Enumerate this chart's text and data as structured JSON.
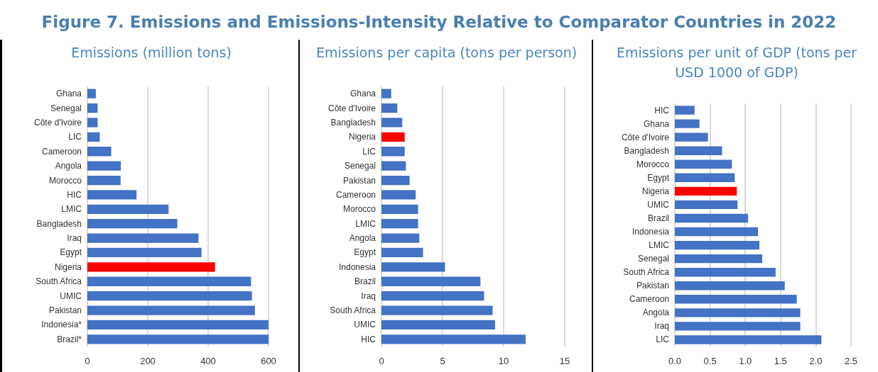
{
  "chart_data": [
    {
      "type": "bar",
      "orientation": "horizontal",
      "title": "Figure 7. Emissions and Emissions-Intensity Relative to Comparator Countries in 2022",
      "subtitle": "Emissions (million tons)",
      "categories": [
        "Ghana",
        "Senegal",
        "Côte d'Ivoire",
        "LIC",
        "Cameroon",
        "Angola",
        "Morocco",
        "HIC",
        "LMIC",
        "Bangladesh",
        "Iraq",
        "Egypt",
        "Nigeria",
        "South Africa",
        "UMIC",
        "Pakistan",
        "Indonesia*",
        "Brazil*"
      ],
      "values": [
        28,
        34,
        34,
        41,
        79,
        111,
        110,
        163,
        269,
        298,
        368,
        378,
        423,
        542,
        545,
        555,
        600,
        600
      ],
      "colors": [
        "#4472c4",
        "#4472c4",
        "#4472c4",
        "#4472c4",
        "#4472c4",
        "#4472c4",
        "#4472c4",
        "#4472c4",
        "#4472c4",
        "#4472c4",
        "#4472c4",
        "#4472c4",
        "#ff0000",
        "#4472c4",
        "#4472c4",
        "#4472c4",
        "#4472c4",
        "#4472c4"
      ],
      "xlim": [
        0,
        600
      ],
      "xticks": [
        0,
        200,
        400,
        600
      ],
      "grid": "x"
    },
    {
      "type": "bar",
      "orientation": "horizontal",
      "subtitle": "Emissions per capita (tons per person)",
      "categories": [
        "Ghana",
        "Côte d'Ivoire",
        "Bangladesh",
        "Nigeria",
        "LIC",
        "Senegal",
        "Pakistan",
        "Cameroon",
        "Morocco",
        "LMIC",
        "Angola",
        "Egypt",
        "Indonesia",
        "Brazil",
        "Iraq",
        "South Africa",
        "UMIC",
        "HIC"
      ],
      "values": [
        0.8,
        1.3,
        1.7,
        1.9,
        1.9,
        2.0,
        2.3,
        2.8,
        3.0,
        3.0,
        3.1,
        3.4,
        5.2,
        8.1,
        8.4,
        9.1,
        9.3,
        11.8
      ],
      "colors": [
        "#4472c4",
        "#4472c4",
        "#4472c4",
        "#ff0000",
        "#4472c4",
        "#4472c4",
        "#4472c4",
        "#4472c4",
        "#4472c4",
        "#4472c4",
        "#4472c4",
        "#4472c4",
        "#4472c4",
        "#4472c4",
        "#4472c4",
        "#4472c4",
        "#4472c4",
        "#4472c4"
      ],
      "xlim": [
        0,
        15
      ],
      "xticks": [
        0,
        5,
        10,
        15
      ],
      "grid": "x"
    },
    {
      "type": "bar",
      "orientation": "horizontal",
      "subtitle": "Emissions per unit of GDP (tons per USD 1000 of GDP)",
      "categories": [
        "HIC",
        "Ghana",
        "Côte d'Ivoire",
        "Bangladesh",
        "Morocco",
        "Egypt",
        "Nigeria",
        "UMIC",
        "Brazil",
        "Indonesia",
        "LMIC",
        "Senegal",
        "South Africa",
        "Pakistan",
        "Cameroon",
        "Angola",
        "Iraq",
        "LIC"
      ],
      "values": [
        0.28,
        0.35,
        0.47,
        0.67,
        0.81,
        0.85,
        0.88,
        0.89,
        1.04,
        1.18,
        1.2,
        1.24,
        1.43,
        1.56,
        1.73,
        1.78,
        1.78,
        2.08
      ],
      "colors": [
        "#4472c4",
        "#4472c4",
        "#4472c4",
        "#4472c4",
        "#4472c4",
        "#4472c4",
        "#ff0000",
        "#4472c4",
        "#4472c4",
        "#4472c4",
        "#4472c4",
        "#4472c4",
        "#4472c4",
        "#4472c4",
        "#4472c4",
        "#4472c4",
        "#4472c4",
        "#4472c4"
      ],
      "xlim": [
        0,
        2.5
      ],
      "xticks": [
        {
          "value": 0,
          "label": "0.0"
        },
        {
          "value": 0.5,
          "label": "0.5"
        },
        {
          "value": 1,
          "label": "1.0"
        },
        {
          "value": 1.5,
          "label": "1.5"
        },
        {
          "value": 2,
          "label": "2.0"
        },
        {
          "value": 2.5,
          "label": "2.5"
        }
      ],
      "grid": "x"
    }
  ]
}
